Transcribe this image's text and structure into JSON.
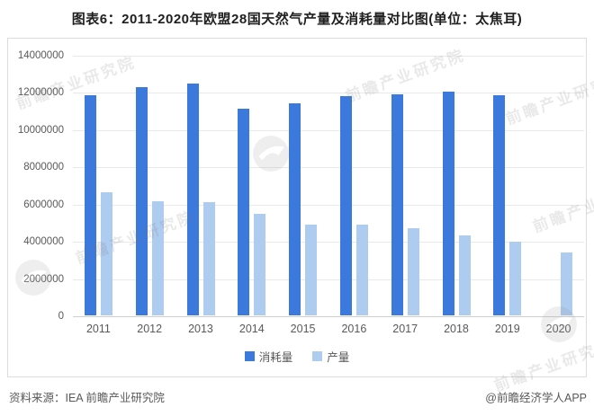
{
  "title": "图表6：2011-2020年欧盟28国天然气产量及消耗量对比图(单位：太焦耳)",
  "chart_data": {
    "type": "bar",
    "categories": [
      "2011",
      "2012",
      "2013",
      "2014",
      "2015",
      "2016",
      "2017",
      "2018",
      "2019",
      "2020"
    ],
    "series": [
      {
        "name": "消耗量",
        "color": "#3b79dc",
        "values": [
          11850000,
          12250000,
          12450000,
          11100000,
          11400000,
          11800000,
          11900000,
          12000000,
          11850000,
          null
        ]
      },
      {
        "name": "产量",
        "color": "#aecbf0",
        "values": [
          6600000,
          6150000,
          6100000,
          5450000,
          4900000,
          4900000,
          4700000,
          4300000,
          3950000,
          3400000
        ]
      }
    ],
    "title": "图表6：2011-2020年欧盟28国天然气产量及消耗量对比图(单位：太焦耳)",
    "xlabel": "",
    "ylabel": "",
    "ylim": [
      0,
      14000000
    ],
    "y_ticks": [
      "14000000",
      "12000000",
      "10000000",
      "8000000",
      "6000000",
      "4000000",
      "2000000",
      "0"
    ],
    "grid": true,
    "legend_position": "bottom"
  },
  "footer": {
    "source": "资料来源：IEA 前瞻产业研究院",
    "credit": "@前瞻经济学人APP"
  },
  "watermark": {
    "text": "前瞻产业研究院"
  }
}
